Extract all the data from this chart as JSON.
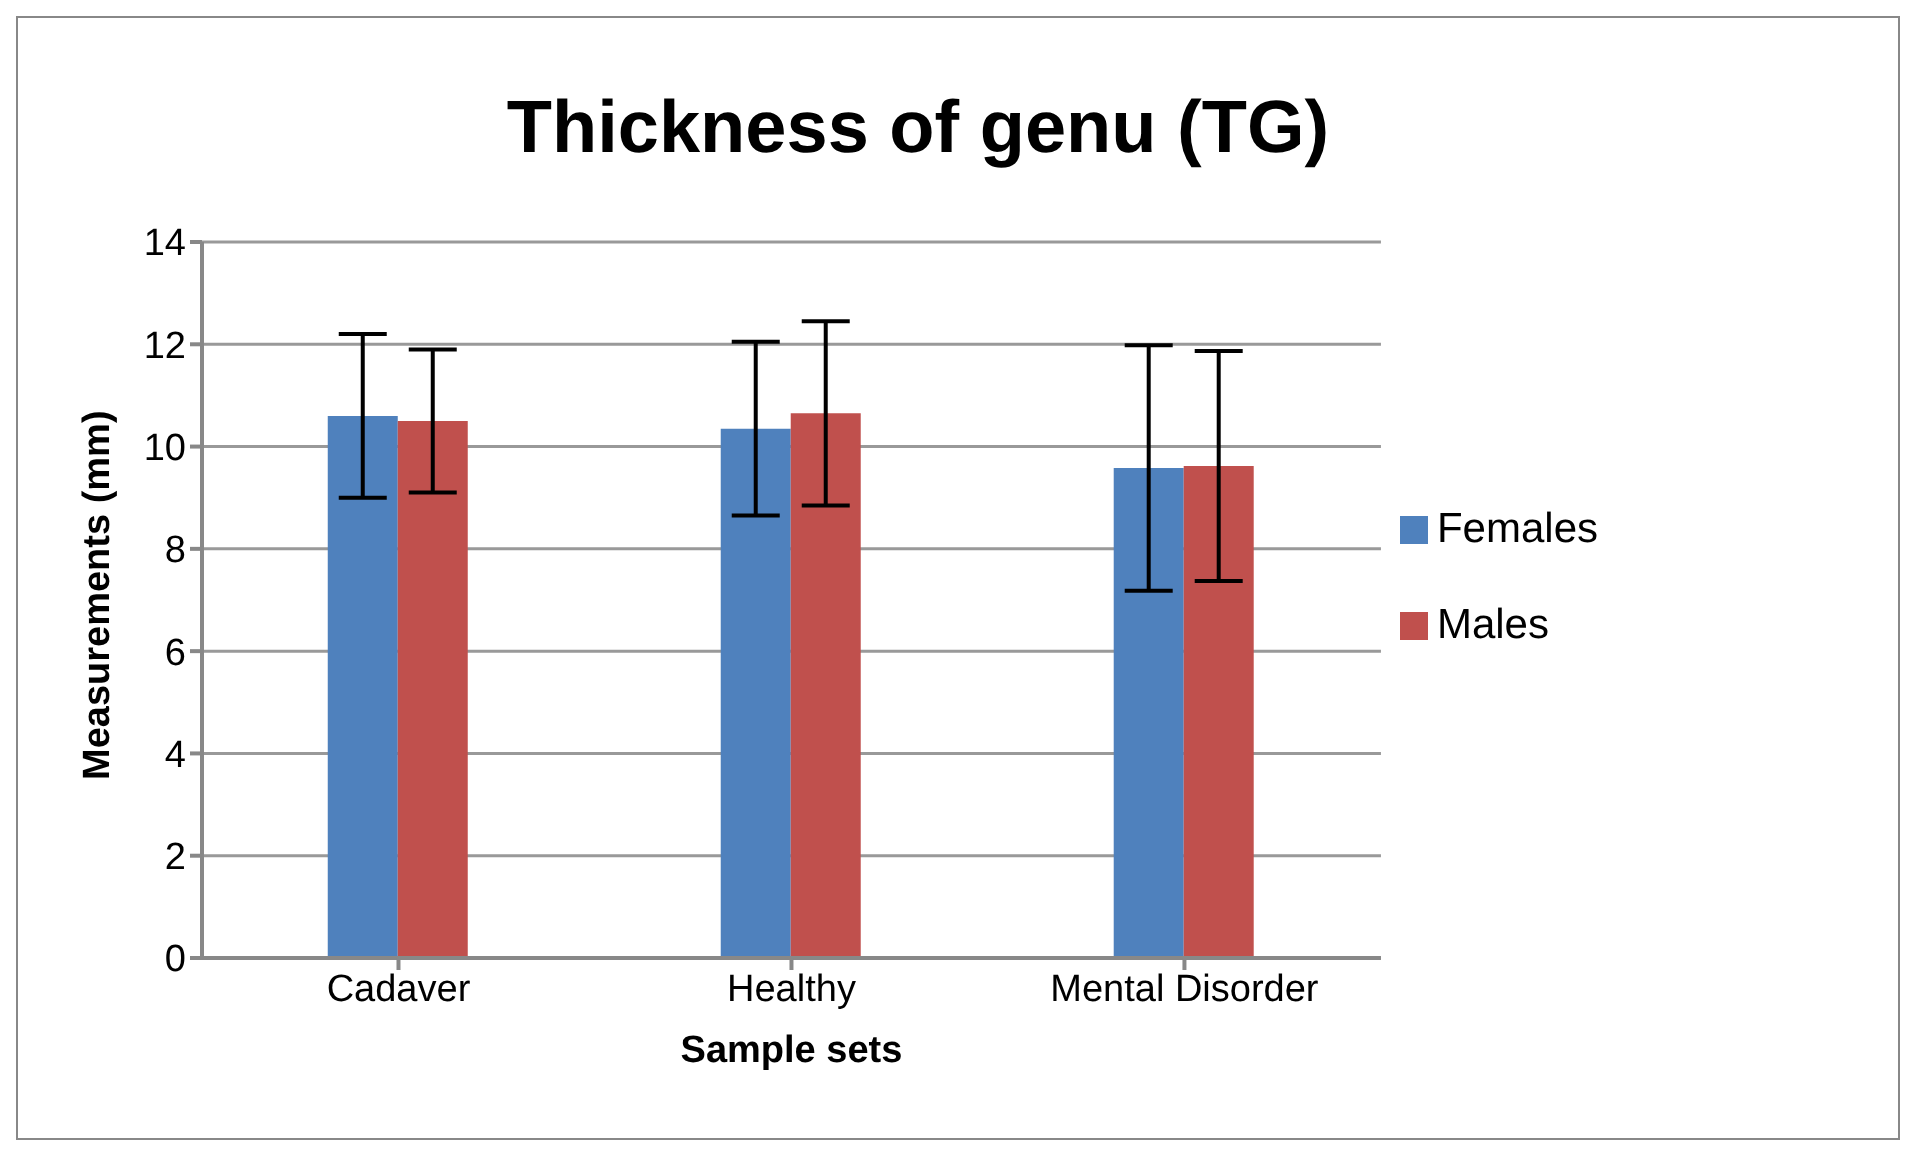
{
  "chart_data": {
    "type": "bar",
    "title": "Thickness of genu (TG)",
    "xlabel": "Sample sets",
    "ylabel": "Measurements (mm)",
    "categories": [
      "Cadaver",
      "Healthy",
      "Mental Disorder"
    ],
    "series": [
      {
        "name": "Females",
        "color": "#4f81bd",
        "values": [
          10.6,
          10.35,
          9.58
        ],
        "errors": [
          1.6,
          1.7,
          2.4
        ]
      },
      {
        "name": "Males",
        "color": "#c0504d",
        "values": [
          10.5,
          10.65,
          9.62
        ],
        "errors": [
          1.4,
          1.8,
          2.25
        ]
      }
    ],
    "ylim": [
      0,
      14
    ],
    "yticks": [
      0,
      2,
      4,
      6,
      8,
      10,
      12,
      14
    ],
    "grid": "y",
    "legend": "right"
  }
}
